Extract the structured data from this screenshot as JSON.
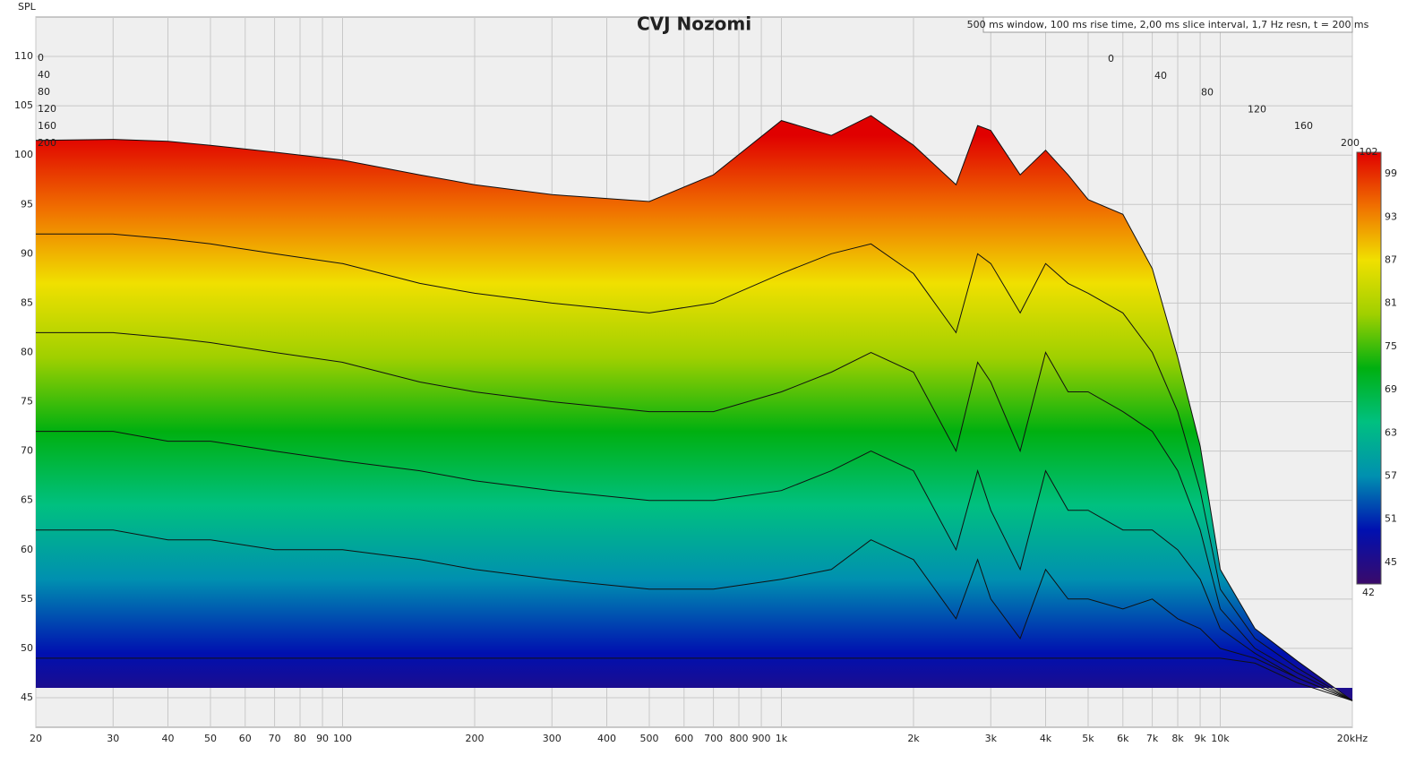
{
  "chart_data": {
    "type": "waterfall",
    "title": "CVJ Nozomi",
    "annotation": "500 ms window, 100 ms rise time, 2,00 ms slice interval, 1,7 Hz resn, t = 200 ms",
    "ylabel": "SPL",
    "x": [
      20,
      30,
      40,
      50,
      70,
      100,
      150,
      200,
      300,
      500,
      700,
      1000,
      1300,
      1600,
      2000,
      2500,
      2800,
      3000,
      3500,
      4000,
      4500,
      5000,
      6000,
      7000,
      8000,
      9000,
      10000,
      12000,
      15000,
      20000
    ],
    "slices": [
      {
        "t": 0,
        "values": [
          101.5,
          101.6,
          101.4,
          101,
          100.3,
          99.5,
          98,
          97,
          96,
          95.3,
          98,
          103.5,
          102,
          104,
          101,
          97,
          103,
          102.5,
          98,
          100.5,
          98,
          95.5,
          94,
          88.5,
          79.5,
          70.5,
          58,
          52,
          48.7,
          44.7
        ]
      },
      {
        "t": 40,
        "values": [
          92,
          92,
          91.5,
          91,
          90,
          89,
          87,
          86,
          85,
          84,
          85,
          88,
          90,
          91,
          88,
          82,
          90,
          89,
          84,
          89,
          87,
          86,
          84,
          80,
          74,
          66,
          56,
          51,
          48,
          44.7
        ]
      },
      {
        "t": 80,
        "values": [
          82,
          82,
          81.5,
          81,
          80,
          79,
          77,
          76,
          75,
          74,
          74,
          76,
          78,
          80,
          78,
          70,
          79,
          77,
          70,
          80,
          76,
          76,
          74,
          72,
          68,
          62,
          54,
          50,
          47.5,
          44.7
        ]
      },
      {
        "t": 120,
        "values": [
          72,
          72,
          71,
          71,
          70,
          69,
          68,
          67,
          66,
          65,
          65,
          66,
          68,
          70,
          68,
          60,
          68,
          64,
          58,
          68,
          64,
          64,
          62,
          62,
          60,
          57,
          52,
          49.5,
          47,
          44.7
        ]
      },
      {
        "t": 160,
        "values": [
          62,
          62,
          61,
          61,
          60,
          60,
          59,
          58,
          57,
          56,
          56,
          57,
          58,
          61,
          59,
          53,
          59,
          55,
          51,
          58,
          55,
          55,
          54,
          55,
          53,
          52,
          50,
          49,
          47,
          44.7
        ]
      },
      {
        "t": 200,
        "values": [
          49,
          49,
          49,
          49,
          49,
          49,
          49,
          49,
          49,
          49,
          49,
          49,
          49,
          49,
          49,
          49,
          49,
          49,
          49,
          49,
          49,
          49,
          49,
          49,
          49,
          49,
          49,
          48.5,
          46.5,
          44.7
        ]
      }
    ],
    "xscale": "log",
    "xlim": [
      20,
      20000
    ],
    "xticks": [
      20,
      30,
      40,
      50,
      60,
      70,
      80,
      90,
      100,
      200,
      300,
      400,
      500,
      600,
      700,
      800,
      900,
      {
        "value": 1000,
        "label": "1k"
      },
      {
        "value": 2000,
        "label": "2k"
      },
      {
        "value": 3000,
        "label": "3k"
      },
      {
        "value": 4000,
        "label": "4k"
      },
      {
        "value": 5000,
        "label": "5k"
      },
      {
        "value": 6000,
        "label": "6k"
      },
      {
        "value": 7000,
        "label": "7k"
      },
      {
        "value": 8000,
        "label": "8k"
      },
      {
        "value": 9000,
        "label": "9k"
      },
      {
        "value": 10000,
        "label": "10k"
      },
      {
        "value": 20000,
        "label": "20kHz"
      }
    ],
    "ylim": [
      42,
      114
    ],
    "yticks": [
      45,
      50,
      55,
      60,
      65,
      70,
      75,
      80,
      85,
      90,
      95,
      100,
      105,
      110
    ],
    "tticks": [
      0,
      40,
      80,
      120,
      160,
      200
    ],
    "grid": true,
    "colorbar": {
      "lim": [
        42,
        102
      ],
      "ticks": [
        102,
        99,
        93,
        87,
        81,
        75,
        69,
        63,
        57,
        51,
        45,
        42
      ],
      "colors": [
        "#3a0a6a",
        "#0010b0",
        "#0090b0",
        "#00c080",
        "#00b010",
        "#a0d000",
        "#f0e000",
        "#f07000",
        "#e00000"
      ]
    }
  }
}
